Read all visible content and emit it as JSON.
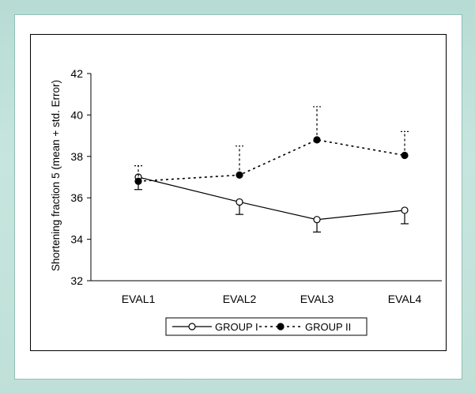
{
  "chart_data": {
    "type": "line",
    "ylabel": "Shortening fraction 5 (mean + std. Error)",
    "xlabel": "",
    "categories": [
      "EVAL1",
      "EVAL2",
      "EVAL3",
      "EVAL4"
    ],
    "ylim": [
      32,
      42
    ],
    "yticks": [
      "32",
      "34",
      "36",
      "38",
      "40",
      "42"
    ],
    "grid": false,
    "legend_position": "bottom",
    "series": [
      {
        "name": "GROUP I",
        "values": [
          37.0,
          35.8,
          34.95,
          35.4
        ],
        "error": [
          0.6,
          0.6,
          0.6,
          0.65
        ],
        "error_direction": "down",
        "marker": "open-circle",
        "line": "solid",
        "color": "#000000"
      },
      {
        "name": "GROUP II",
        "values": [
          36.8,
          37.1,
          38.8,
          38.05
        ],
        "error": [
          0.75,
          1.4,
          1.6,
          1.15
        ],
        "error_direction": "up",
        "marker": "filled-circle",
        "line": "dotted",
        "color": "#000000"
      }
    ]
  }
}
